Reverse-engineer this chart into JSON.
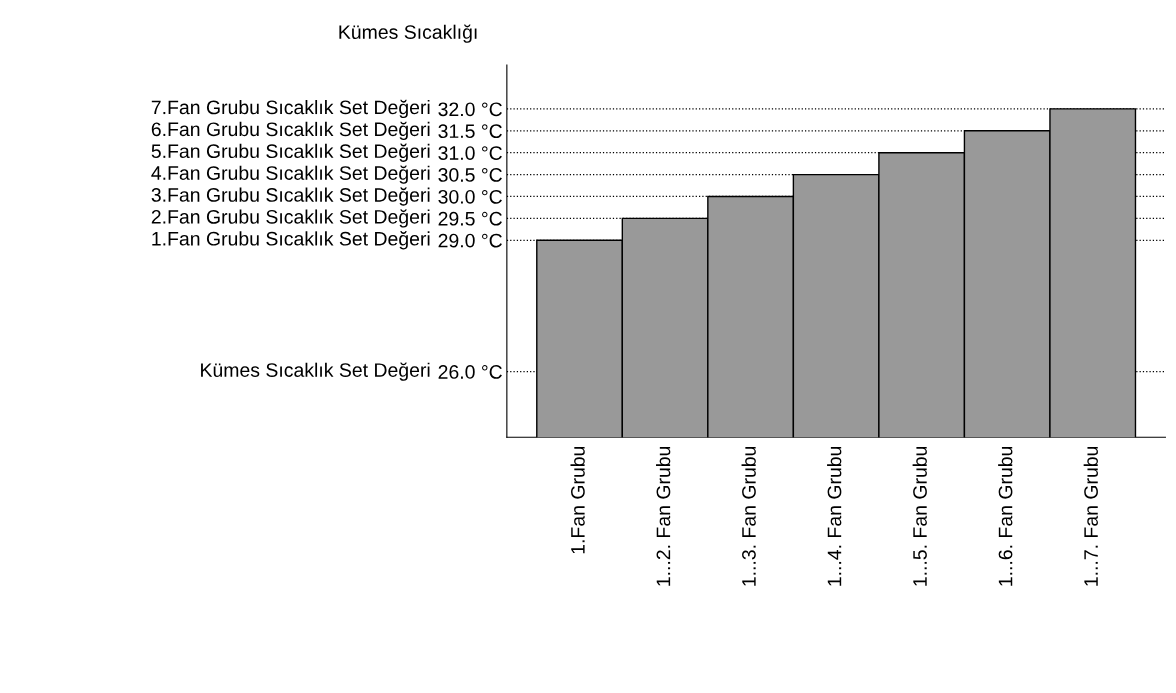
{
  "chart_data": {
    "type": "bar",
    "ylabel": "Kümes Sıcaklığı",
    "categories": [
      "1.Fan Grubu",
      "1...2. Fan Grubu",
      "1...3. Fan Grubu",
      "1...4. Fan Grubu",
      "1...5. Fan Grubu",
      "1...6. Fan Grubu",
      "1...7. Fan Grubu"
    ],
    "values": [
      29.0,
      29.5,
      30.0,
      30.5,
      31.0,
      31.5,
      32.0
    ],
    "color": "#999999",
    "ylim": [
      24.5,
      33
    ],
    "yticks": [
      {
        "value": 26.0,
        "label": "26.0 °C"
      },
      {
        "value": 29.0,
        "label": "29.0 °C"
      },
      {
        "value": 29.5,
        "label": "29.5 °C"
      },
      {
        "value": 30.0,
        "label": "30.0 °C"
      },
      {
        "value": 30.5,
        "label": "30.5 °C"
      },
      {
        "value": 31.0,
        "label": "31.0 °C"
      },
      {
        "value": 31.5,
        "label": "31.5 °C"
      },
      {
        "value": 32.0,
        "label": "32.0 °C"
      }
    ],
    "ref_lines": [
      {
        "axis": "y",
        "value": 26.0,
        "line_style": "dotted"
      },
      {
        "axis": "y",
        "value": 29.0,
        "line_style": "dotted"
      },
      {
        "axis": "y",
        "value": 29.5,
        "line_style": "dotted"
      },
      {
        "axis": "y",
        "value": 30.0,
        "line_style": "dotted"
      },
      {
        "axis": "y",
        "value": 30.5,
        "line_style": "dotted"
      },
      {
        "axis": "y",
        "value": 31.0,
        "line_style": "dotted"
      },
      {
        "axis": "y",
        "value": 31.5,
        "line_style": "dotted"
      },
      {
        "axis": "y",
        "value": 32.0,
        "line_style": "dotted"
      }
    ],
    "annotations": [
      "Kümes Sıcaklık Set Değeri",
      "1.Fan Grubu Sıcaklık Set Değeri",
      "2.Fan Grubu Sıcaklık Set Değeri",
      "3.Fan Grubu Sıcaklık Set Değeri",
      "4.Fan Grubu Sıcaklık Set Değeri",
      "5.Fan Grubu Sıcaklık Set Değeri",
      "6.Fan Grubu Sıcaklık Set Değeri",
      "7.Fan Grubu Sıcaklık Set Değeri"
    ],
    "grid": false,
    "legend": false
  }
}
